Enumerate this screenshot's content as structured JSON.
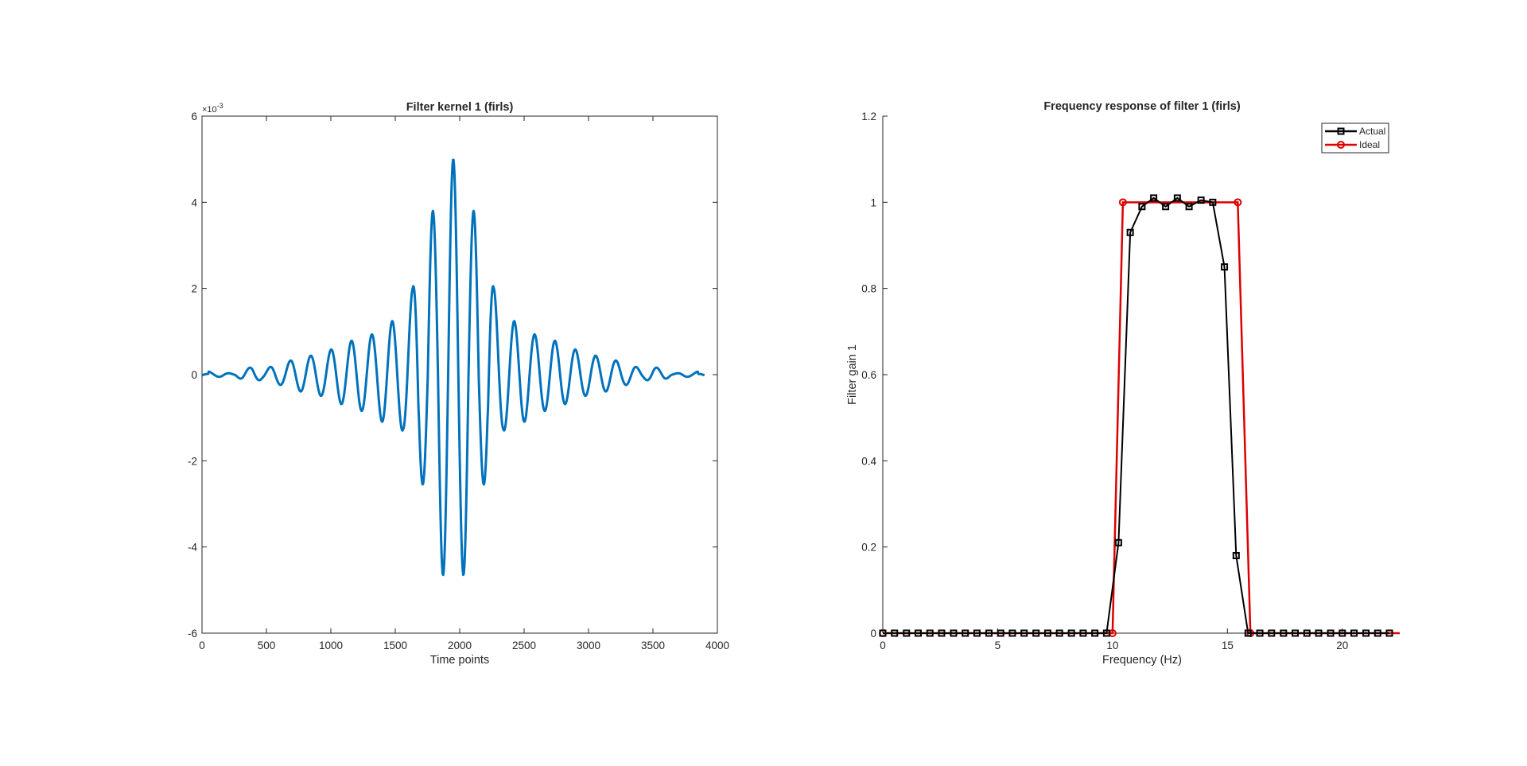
{
  "chart_data": [
    {
      "type": "line",
      "title": "Filter kernel 1 (firls)",
      "xlabel": "Time points",
      "ylabel": "",
      "xlim": [
        0,
        4000
      ],
      "ylim": [
        -6,
        6
      ],
      "y_exponent_label": "×10",
      "y_exponent_power": "-3",
      "xticks": [
        0,
        500,
        1000,
        1500,
        2000,
        2500,
        3000,
        3500,
        4000
      ],
      "yticks": [
        -6,
        -4,
        -2,
        0,
        2,
        4,
        6
      ],
      "xtick_labels": [
        "0",
        "500",
        "1000",
        "1500",
        "2000",
        "2500",
        "3000",
        "3500",
        "4000"
      ],
      "ytick_labels": [
        "-6",
        "-4",
        "-2",
        "0",
        "2",
        "4",
        "6"
      ],
      "grid": false,
      "color": "#0072BD",
      "series": [
        {
          "kernel": {
            "n_points": 3900,
            "center": 1950,
            "carrier_period_samples": 158,
            "peak": 5.0,
            "side_peak_times": [
              0,
              85,
              165,
              245,
              315,
              395,
              475,
              545,
              625,
              705,
              780,
              860,
              935,
              1015,
              1095,
              1170,
              1250,
              1330,
              1400,
              1480,
              1560,
              1635,
              1715,
              1790,
              1870,
              1950
            ],
            "side_peak_values": [
              -0.1,
              0.05,
              0.05,
              0.02,
              0.12,
              0.18,
              0.1,
              0.2,
              0.25,
              0.35,
              0.4,
              0.45,
              0.5,
              0.6,
              0.7,
              0.8,
              0.85,
              0.95,
              1.1,
              1.25,
              1.3,
              2.0,
              3.8,
              2.6,
              4.65,
              5.0
            ]
          }
        }
      ]
    },
    {
      "type": "line",
      "title": "Frequency response of filter 1 (firls)",
      "xlabel": "Frequency (Hz)",
      "ylabel": "Filter gain 1",
      "xlim": [
        0,
        22.5
      ],
      "ylim": [
        0,
        1.2
      ],
      "xticks": [
        0,
        5,
        10,
        15,
        20
      ],
      "yticks": [
        0,
        0.2,
        0.4,
        0.6,
        0.8,
        1,
        1.2
      ],
      "xtick_labels": [
        "0",
        "5",
        "10",
        "15",
        "20"
      ],
      "ytick_labels": [
        "0",
        "0.2",
        "0.4",
        "0.6",
        "0.8",
        "1",
        "1.2"
      ],
      "grid": false,
      "legend_position": "top-right",
      "series": [
        {
          "name": "Actual",
          "color": "#000000",
          "marker": "square",
          "x": [
            0,
            0.51,
            1.03,
            1.54,
            2.05,
            2.56,
            3.08,
            3.59,
            4.1,
            4.62,
            5.13,
            5.64,
            6.15,
            6.67,
            7.18,
            7.69,
            8.21,
            8.72,
            9.23,
            9.74,
            10.26,
            10.77,
            11.28,
            11.79,
            12.31,
            12.82,
            13.33,
            13.85,
            14.36,
            14.87,
            15.38,
            15.9,
            16.41,
            16.92,
            17.44,
            17.95,
            18.46,
            18.97,
            19.49,
            20.0,
            20.51,
            21.03,
            21.54,
            22.05
          ],
          "y": [
            0,
            0,
            0,
            0,
            0,
            0,
            0,
            0,
            0,
            0,
            0,
            0,
            0,
            0,
            0,
            0,
            0,
            0,
            0,
            0,
            0.21,
            0.93,
            0.99,
            1.01,
            0.99,
            1.01,
            0.99,
            1.005,
            1.0,
            0.85,
            0.18,
            0,
            0,
            0,
            0,
            0,
            0,
            0,
            0,
            0,
            0,
            0,
            0,
            0
          ]
        },
        {
          "name": "Ideal",
          "color": "#DD0000",
          "marker": "circle",
          "x": [
            0,
            10,
            10.45,
            15.45,
            16.0,
            22.5
          ],
          "y": [
            0,
            0,
            1,
            1,
            0,
            0
          ],
          "marker_x": [
            0,
            10,
            10.45,
            15.45,
            16.0
          ],
          "marker_y": [
            0,
            0,
            1,
            1,
            0
          ]
        }
      ]
    }
  ]
}
